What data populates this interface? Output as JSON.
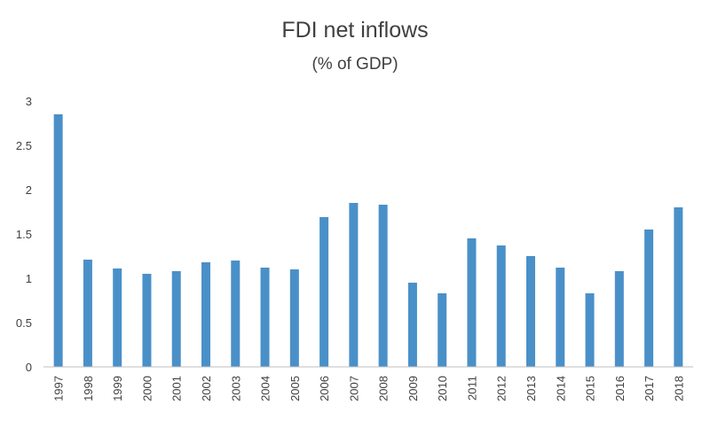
{
  "chart_data": {
    "type": "bar",
    "title": "FDI net inflows",
    "subtitle": "(% of GDP)",
    "xlabel": "",
    "ylabel": "",
    "ylim": [
      0,
      3
    ],
    "yticks": [
      "0",
      "0.5",
      "1",
      "1.5",
      "2",
      "2.5",
      "3"
    ],
    "grid": false,
    "bar_color": "#4a90c8",
    "categories": [
      "1997",
      "1998",
      "1999",
      "2000",
      "2001",
      "2002",
      "2003",
      "2004",
      "2005",
      "2006",
      "2007",
      "2008",
      "2009",
      "2010",
      "2011",
      "2012",
      "2013",
      "2014",
      "2015",
      "2016",
      "2017",
      "2018"
    ],
    "values": [
      2.85,
      1.21,
      1.11,
      1.05,
      1.08,
      1.18,
      1.2,
      1.12,
      1.1,
      1.69,
      1.85,
      1.83,
      0.95,
      0.83,
      1.45,
      1.37,
      1.25,
      1.12,
      0.83,
      1.08,
      1.55,
      1.8
    ]
  }
}
